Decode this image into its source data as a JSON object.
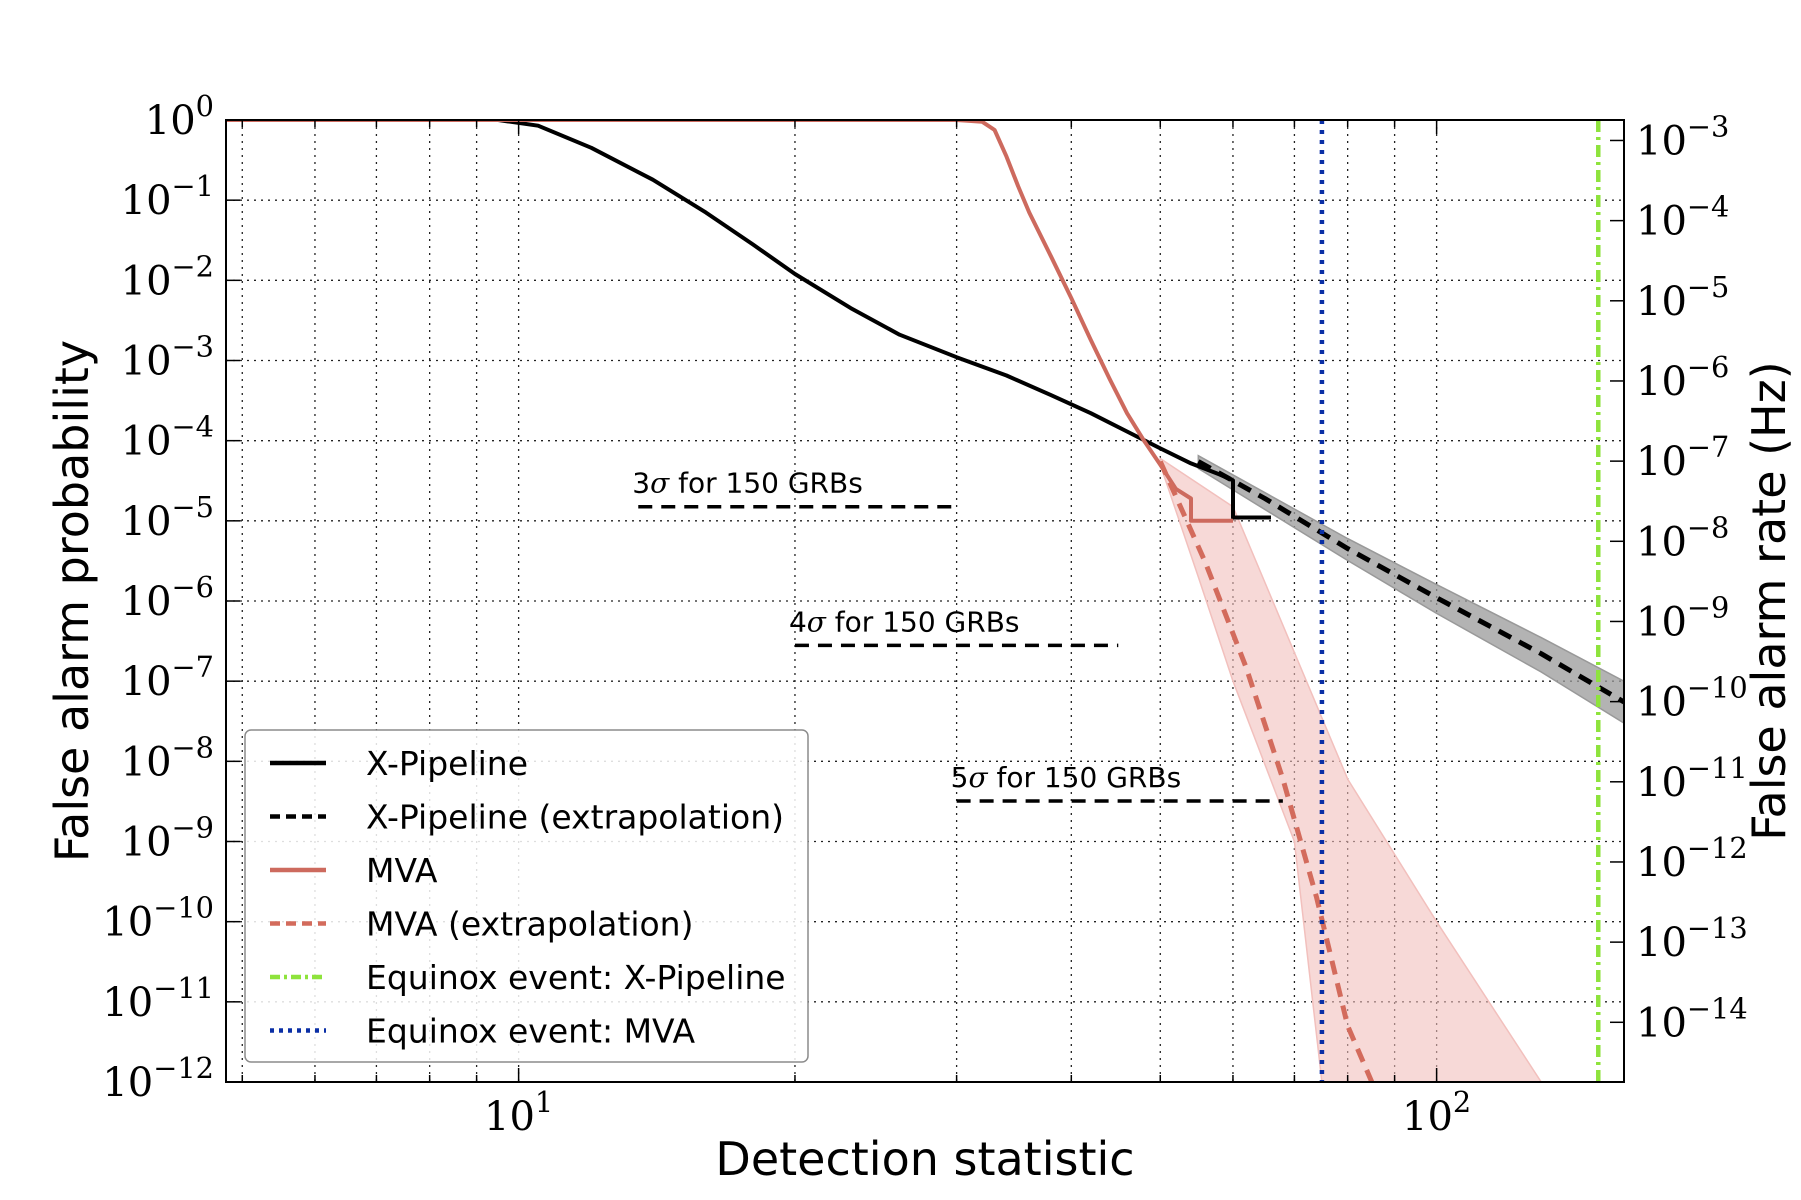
{
  "chart_data": {
    "type": "line",
    "xlabel": "Detection statistic",
    "ylabel": "False alarm probability",
    "y2label": "False alarm rate (Hz)",
    "xscale": "log",
    "yscale": "log",
    "xlim": [
      4.8,
      160
    ],
    "ylim": [
      1e-12,
      1
    ],
    "y2lim": [
      1.8e-15,
      0.0018
    ],
    "grid": true,
    "legend_position": "lower-left",
    "x_ticks": [
      {
        "value": 10,
        "base": "10",
        "exp": "1"
      },
      {
        "value": 100,
        "base": "10",
        "exp": "2"
      }
    ],
    "y_ticks": [
      {
        "value": 1,
        "base": "10",
        "exp": "0"
      },
      {
        "value": 0.1,
        "base": "10",
        "exp": "−1"
      },
      {
        "value": 0.01,
        "base": "10",
        "exp": "−2"
      },
      {
        "value": 0.001,
        "base": "10",
        "exp": "−3"
      },
      {
        "value": 0.0001,
        "base": "10",
        "exp": "−4"
      },
      {
        "value": 1e-05,
        "base": "10",
        "exp": "−5"
      },
      {
        "value": 1e-06,
        "base": "10",
        "exp": "−6"
      },
      {
        "value": 1e-07,
        "base": "10",
        "exp": "−7"
      },
      {
        "value": 1e-08,
        "base": "10",
        "exp": "−8"
      },
      {
        "value": 1e-09,
        "base": "10",
        "exp": "−9"
      },
      {
        "value": 1e-10,
        "base": "10",
        "exp": "−10"
      },
      {
        "value": 1e-11,
        "base": "10",
        "exp": "−11"
      },
      {
        "value": 1e-12,
        "base": "10",
        "exp": "−12"
      }
    ],
    "y2_ticks": [
      {
        "value": 0.001,
        "base": "10",
        "exp": "−3"
      },
      {
        "value": 0.0001,
        "base": "10",
        "exp": "−4"
      },
      {
        "value": 1e-05,
        "base": "10",
        "exp": "−5"
      },
      {
        "value": 1e-06,
        "base": "10",
        "exp": "−6"
      },
      {
        "value": 1e-07,
        "base": "10",
        "exp": "−7"
      },
      {
        "value": 1e-08,
        "base": "10",
        "exp": "−8"
      },
      {
        "value": 1e-09,
        "base": "10",
        "exp": "−9"
      },
      {
        "value": 1e-10,
        "base": "10",
        "exp": "−10"
      },
      {
        "value": 1e-11,
        "base": "10",
        "exp": "−11"
      },
      {
        "value": 1e-12,
        "base": "10",
        "exp": "−12"
      },
      {
        "value": 1e-13,
        "base": "10",
        "exp": "−13"
      },
      {
        "value": 1e-14,
        "base": "10",
        "exp": "−14"
      }
    ],
    "series": [
      {
        "name": "X-Pipeline",
        "style": "solid",
        "color": "#000000",
        "points": [
          [
            4.8,
            1
          ],
          [
            9.5,
            1
          ],
          [
            10.5,
            0.85
          ],
          [
            12,
            0.45
          ],
          [
            14,
            0.18
          ],
          [
            16,
            0.07
          ],
          [
            18,
            0.028
          ],
          [
            20,
            0.012
          ],
          [
            23,
            0.0045
          ],
          [
            26,
            0.0021
          ],
          [
            30,
            0.0011
          ],
          [
            34,
            0.00065
          ],
          [
            38,
            0.00037
          ],
          [
            42,
            0.00022
          ],
          [
            46,
            0.00013
          ],
          [
            50,
            8e-05
          ],
          [
            54,
            5.2e-05
          ],
          [
            58,
            3.8e-05
          ],
          [
            60,
            3.2e-05
          ],
          [
            60,
            1.1e-05
          ],
          [
            66,
            1.1e-05
          ]
        ]
      },
      {
        "name": "X-Pipeline (extrapolation)",
        "style": "dashed",
        "color": "#000000",
        "band_color": "#999999",
        "points": [
          [
            55,
            5.5e-05
          ],
          [
            65,
            1.9e-05
          ],
          [
            80,
            4.5e-06
          ],
          [
            100,
            1.1e-06
          ],
          [
            130,
            2.2e-07
          ],
          [
            160,
            5.5e-08
          ]
        ],
        "band_upper": [
          [
            55,
            6.5e-05
          ],
          [
            80,
            6e-06
          ],
          [
            100,
            1.6e-06
          ],
          [
            130,
            3.5e-07
          ],
          [
            160,
            1e-07
          ]
        ],
        "band_lower": [
          [
            55,
            4.5e-05
          ],
          [
            80,
            3.2e-06
          ],
          [
            100,
            7e-07
          ],
          [
            130,
            1.3e-07
          ],
          [
            160,
            3e-08
          ]
        ]
      },
      {
        "name": "MVA",
        "style": "solid",
        "color": "#cd6a5e",
        "points": [
          [
            4.8,
            1
          ],
          [
            30,
            1
          ],
          [
            32,
            0.95
          ],
          [
            33,
            0.75
          ],
          [
            34,
            0.35
          ],
          [
            35,
            0.15
          ],
          [
            36,
            0.07
          ],
          [
            38,
            0.02
          ],
          [
            40,
            0.006
          ],
          [
            42,
            0.0018
          ],
          [
            44,
            0.0006
          ],
          [
            46,
            0.00022
          ],
          [
            48,
            0.0001
          ],
          [
            50,
            5e-05
          ],
          [
            52,
            2.5e-05
          ],
          [
            54,
            1.9e-05
          ],
          [
            54,
            1e-05
          ],
          [
            60,
            1e-05
          ]
        ]
      },
      {
        "name": "MVA (extrapolation)",
        "style": "dashed",
        "color": "#d36b5c",
        "band_color": "#f2c0bd",
        "points": [
          [
            50,
            5.5e-05
          ],
          [
            56,
            3e-06
          ],
          [
            62,
            1.5e-07
          ],
          [
            68,
            6e-09
          ],
          [
            74,
            2e-10
          ],
          [
            80,
            5e-12
          ],
          [
            85,
            1e-12
          ]
        ],
        "band_upper": [
          [
            50,
            6e-05
          ],
          [
            60,
            1.5e-05
          ],
          [
            80,
            6e-09
          ],
          [
            100,
            1e-10
          ],
          [
            130,
            1e-12
          ]
        ],
        "band_lower": [
          [
            50,
            5e-05
          ],
          [
            55,
            2e-06
          ],
          [
            60,
            1e-07
          ],
          [
            70,
            1e-09
          ],
          [
            75,
            1e-12
          ]
        ]
      },
      {
        "name": "Equinox event: X-Pipeline",
        "style": "dashdot",
        "color": "#8ee33c",
        "vline_x": 150
      },
      {
        "name": "Equinox event: MVA",
        "style": "dotted",
        "color": "#0a2fa6",
        "vline_x": 75
      }
    ],
    "annotations": [
      {
        "prefix": "3",
        "sym": "σ",
        "suffix": " for 150 GRBs",
        "x_start": 13.5,
        "x_end": 30,
        "y": 1.5e-05
      },
      {
        "prefix": "4",
        "sym": "σ",
        "suffix": " for 150 GRBs",
        "x_start": 20,
        "x_end": 45,
        "y": 2.8e-07
      },
      {
        "prefix": "5",
        "sym": "σ",
        "suffix": " for 150 GRBs",
        "x_start": 30,
        "x_end": 68,
        "y": 3.2e-09
      }
    ]
  }
}
